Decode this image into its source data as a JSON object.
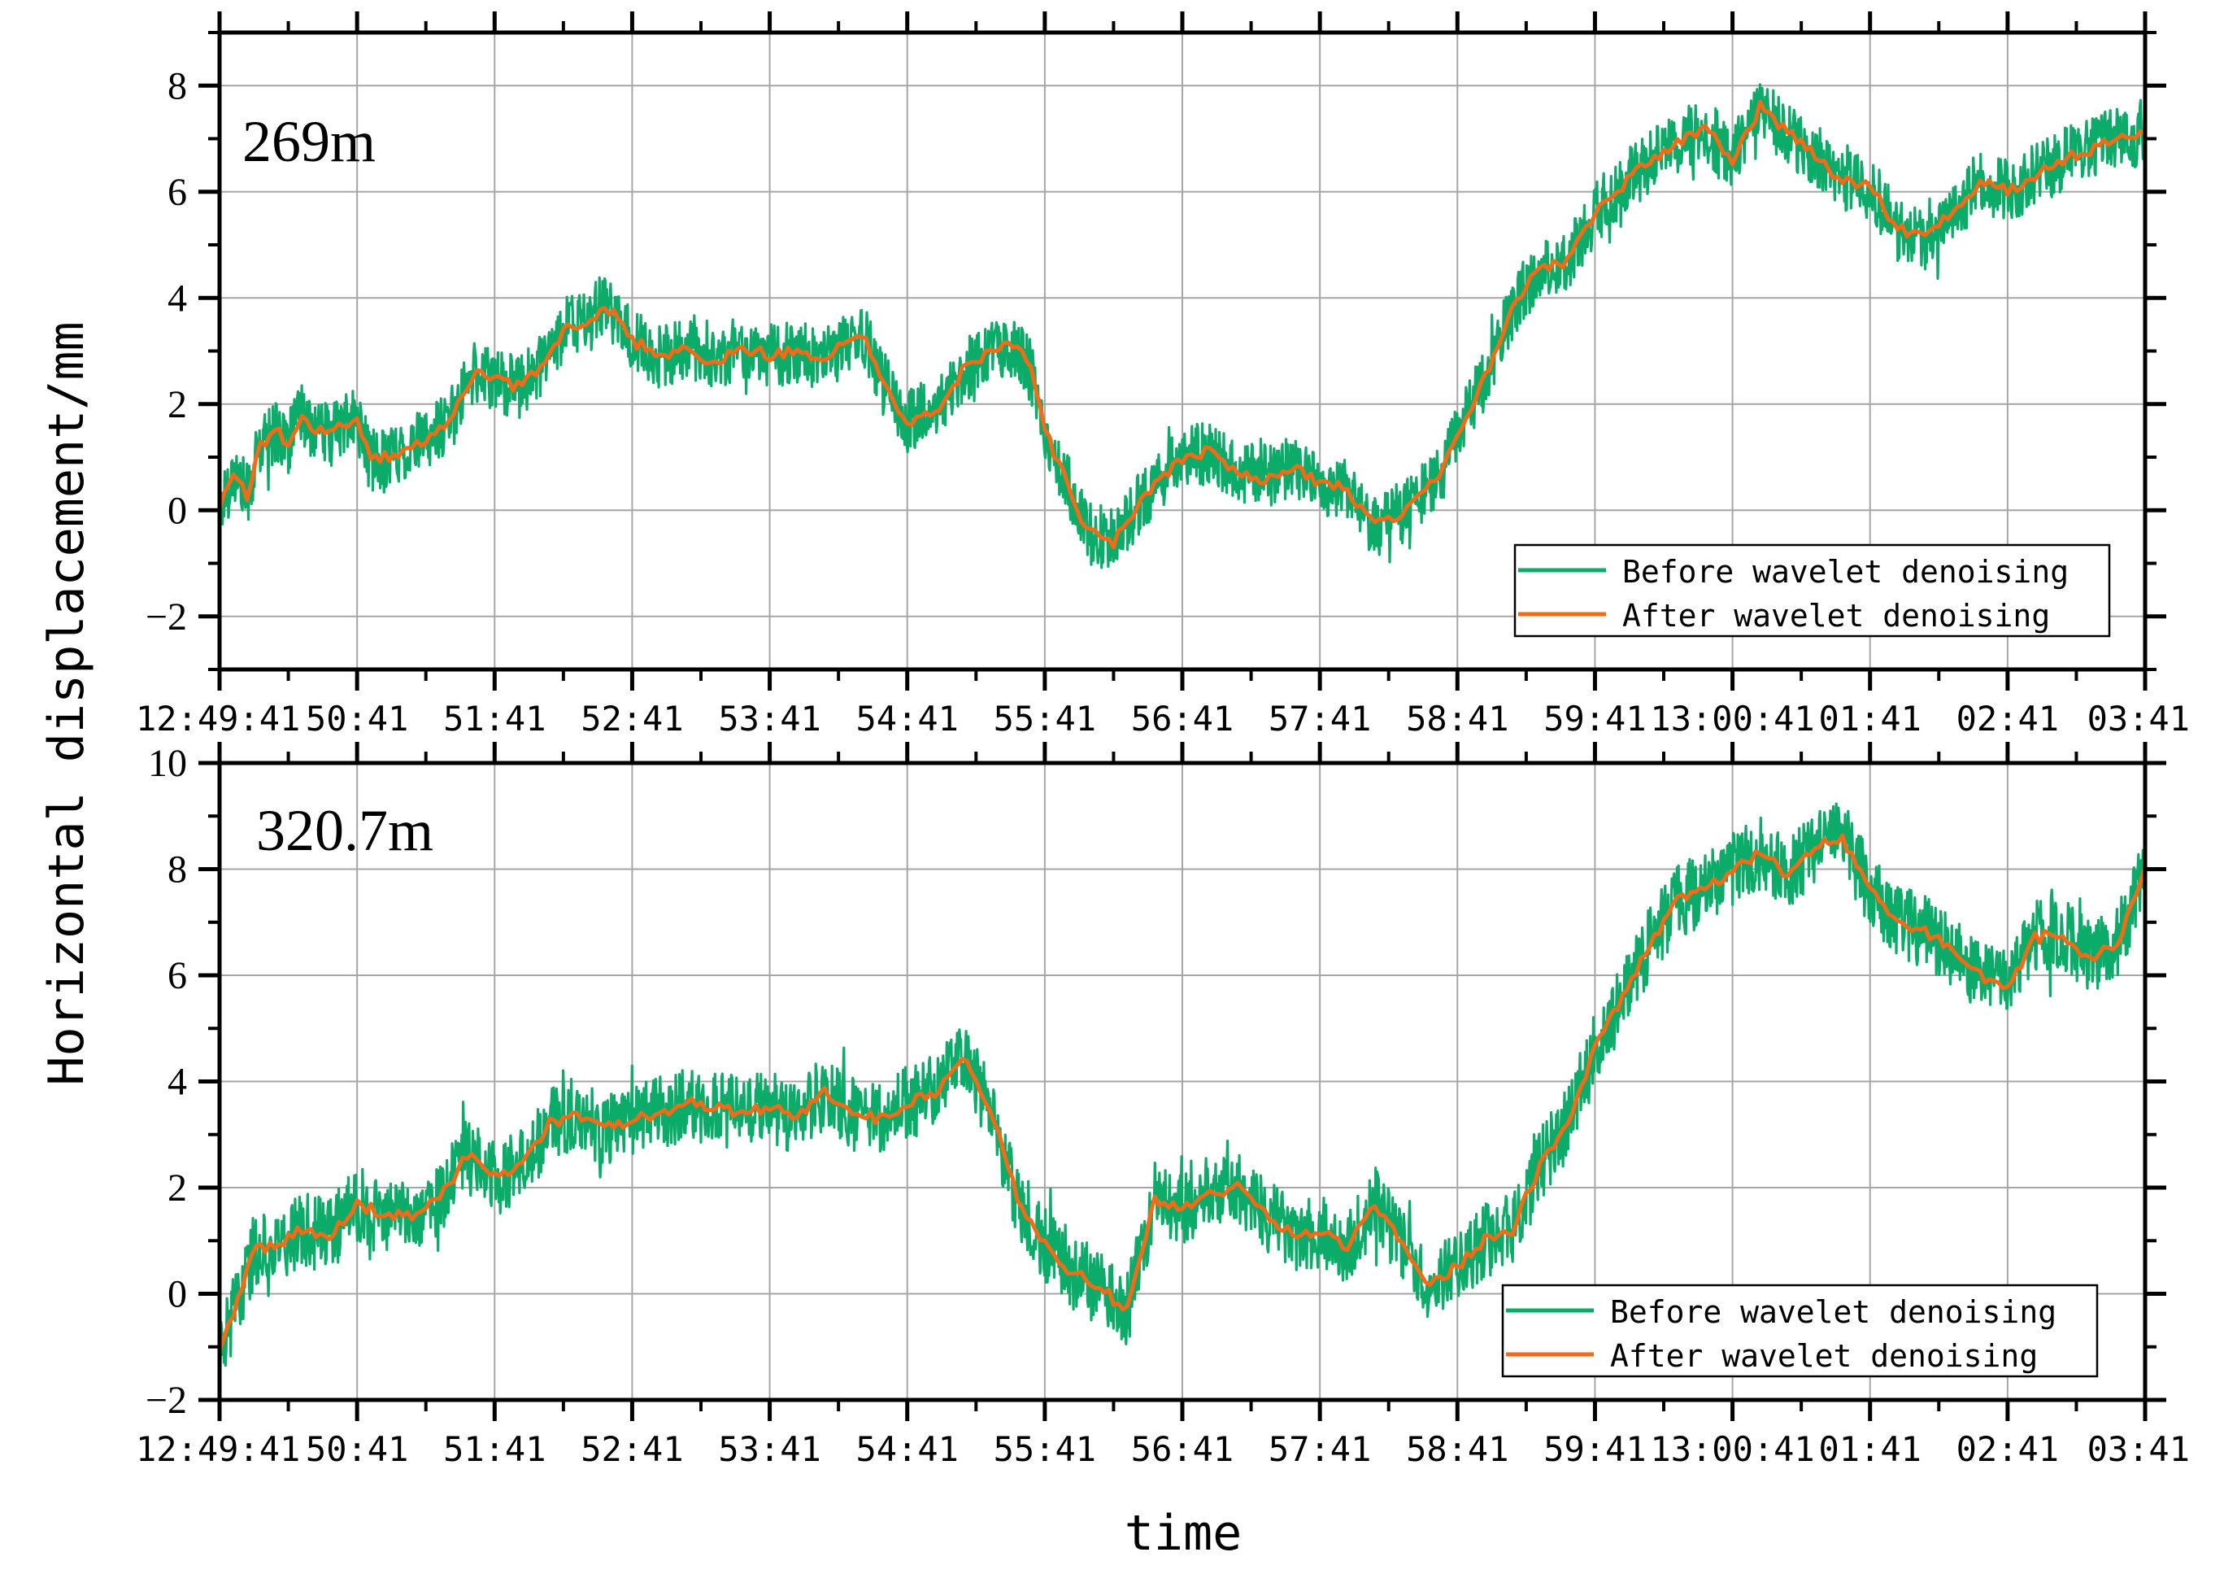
{
  "figure": {
    "ylabel": "Horizontal displacement/mm",
    "xlabel": "time"
  },
  "colors": {
    "before": "#0bab6a",
    "after": "#f56a14",
    "grid": "#a6a6a6",
    "axis": "#000000"
  },
  "chart_data": [
    {
      "type": "line",
      "title": "269m",
      "x_tick_labels": [
        "12:49:41",
        "50:41",
        "51:41",
        "52:41",
        "53:41",
        "54:41",
        "55:41",
        "56:41",
        "57:41",
        "58:41",
        "59:41",
        "13:00:41",
        "01:41",
        "02:41",
        "03:41"
      ],
      "ylim": [
        -3,
        9
      ],
      "y_ticks": [
        -2,
        0,
        2,
        4,
        6,
        8
      ],
      "y_tick_labels": [
        "−2",
        "0",
        "2",
        "4",
        "6",
        "8"
      ],
      "legend": [
        "Before wavelet denoising",
        "After wavelet denoising"
      ],
      "legend_position": "bottom-right",
      "noise_amplitude": 0.6,
      "series": [
        {
          "name": "After wavelet denoising",
          "x": [
            0,
            0.1,
            0.2,
            0.3,
            0.4,
            0.5,
            0.6,
            0.7,
            0.8,
            0.9,
            1.0,
            1.1,
            1.3,
            1.5,
            1.7,
            1.85,
            2.0,
            2.15,
            2.3,
            2.5,
            2.7,
            2.8,
            3.0,
            3.2,
            3.4,
            3.6,
            3.8,
            4.0,
            4.2,
            4.4,
            4.6,
            4.7,
            4.8,
            5.0,
            5.2,
            5.4,
            5.6,
            5.8,
            5.9,
            6.0,
            6.15,
            6.3,
            6.5,
            6.7,
            6.9,
            7.0,
            7.2,
            7.4,
            7.6,
            7.8,
            8.0,
            8.2,
            8.4,
            8.6,
            8.7,
            8.9,
            9.0,
            9.2,
            9.4,
            9.6,
            9.8,
            10.0,
            10.2,
            10.4,
            10.6,
            10.8,
            11.0,
            11.2,
            11.4,
            11.6,
            11.8,
            12.0,
            12.2,
            12.4,
            12.6,
            12.8,
            13.0,
            13.2,
            13.4,
            13.6,
            13.8,
            14.0
          ],
          "values": [
            0.0,
            0.7,
            0.3,
            1.2,
            1.5,
            1.3,
            1.8,
            1.5,
            1.4,
            1.6,
            1.7,
            0.9,
            1.1,
            1.3,
            1.8,
            2.6,
            2.5,
            2.3,
            2.6,
            3.4,
            3.6,
            3.9,
            3.2,
            2.9,
            3.0,
            2.8,
            3.1,
            2.9,
            3.0,
            2.8,
            3.3,
            3.2,
            2.5,
            1.7,
            1.8,
            2.6,
            3.0,
            3.1,
            2.6,
            1.5,
            0.6,
            -0.4,
            -0.6,
            0.2,
            0.7,
            1.0,
            1.1,
            0.7,
            0.6,
            0.8,
            0.5,
            0.4,
            -0.3,
            -0.1,
            0.2,
            0.8,
            1.4,
            2.5,
            3.8,
            4.6,
            4.7,
            5.6,
            6.1,
            6.6,
            6.9,
            7.2,
            6.6,
            7.6,
            7.1,
            6.7,
            6.2,
            6.1,
            5.3,
            5.1,
            5.6,
            6.2,
            6.0,
            6.3,
            6.6,
            6.8,
            7.0,
            7.1
          ]
        }
      ]
    },
    {
      "type": "line",
      "title": "320.7m",
      "x_tick_labels": [
        "12:49:41",
        "50:41",
        "51:41",
        "52:41",
        "53:41",
        "54:41",
        "55:41",
        "56:41",
        "57:41",
        "58:41",
        "59:41",
        "13:00:41",
        "01:41",
        "02:41",
        "03:41"
      ],
      "ylim": [
        -2,
        10
      ],
      "y_ticks": [
        -2,
        0,
        2,
        4,
        6,
        8,
        10
      ],
      "y_tick_labels": [
        "−2",
        "0",
        "2",
        "4",
        "6",
        "8",
        "10"
      ],
      "legend": [
        "Before wavelet denoising",
        "After wavelet denoising"
      ],
      "legend_position": "bottom-right",
      "noise_amplitude": 0.7,
      "series": [
        {
          "name": "After wavelet denoising",
          "x": [
            0,
            0.1,
            0.25,
            0.4,
            0.6,
            0.8,
            1.0,
            1.2,
            1.4,
            1.6,
            1.8,
            2.0,
            2.2,
            2.4,
            2.6,
            2.8,
            3.0,
            3.2,
            3.4,
            3.6,
            3.8,
            4.0,
            4.2,
            4.4,
            4.6,
            4.8,
            5.0,
            5.2,
            5.4,
            5.6,
            5.8,
            6.0,
            6.2,
            6.4,
            6.6,
            6.8,
            7.0,
            7.2,
            7.4,
            7.6,
            7.8,
            8.0,
            8.2,
            8.4,
            8.6,
            8.8,
            9.0,
            9.2,
            9.4,
            9.6,
            9.8,
            10.0,
            10.2,
            10.4,
            10.6,
            10.8,
            11.0,
            11.2,
            11.4,
            11.6,
            11.8,
            12.0,
            12.2,
            12.4,
            12.6,
            12.8,
            13.0,
            13.2,
            13.4,
            13.6,
            13.8,
            14.0
          ],
          "values": [
            -1.1,
            -0.4,
            0.8,
            0.9,
            1.2,
            1.1,
            1.7,
            1.5,
            1.5,
            1.8,
            2.6,
            2.2,
            2.4,
            3.2,
            3.4,
            3.1,
            3.3,
            3.4,
            3.6,
            3.5,
            3.4,
            3.5,
            3.3,
            3.8,
            3.4,
            3.3,
            3.6,
            3.8,
            4.5,
            3.5,
            1.8,
            0.9,
            0.4,
            0.1,
            -0.3,
            1.8,
            1.6,
            1.9,
            2.0,
            1.5,
            1.1,
            1.2,
            0.9,
            1.7,
            0.9,
            0.2,
            0.5,
            1.0,
            1.2,
            2.4,
            3.2,
            4.6,
            5.6,
            6.6,
            7.4,
            7.6,
            8.0,
            8.3,
            7.9,
            8.4,
            8.6,
            7.6,
            7.0,
            6.8,
            6.5,
            6.0,
            5.8,
            6.7,
            6.8,
            6.3,
            6.6,
            8.0
          ]
        }
      ]
    }
  ]
}
